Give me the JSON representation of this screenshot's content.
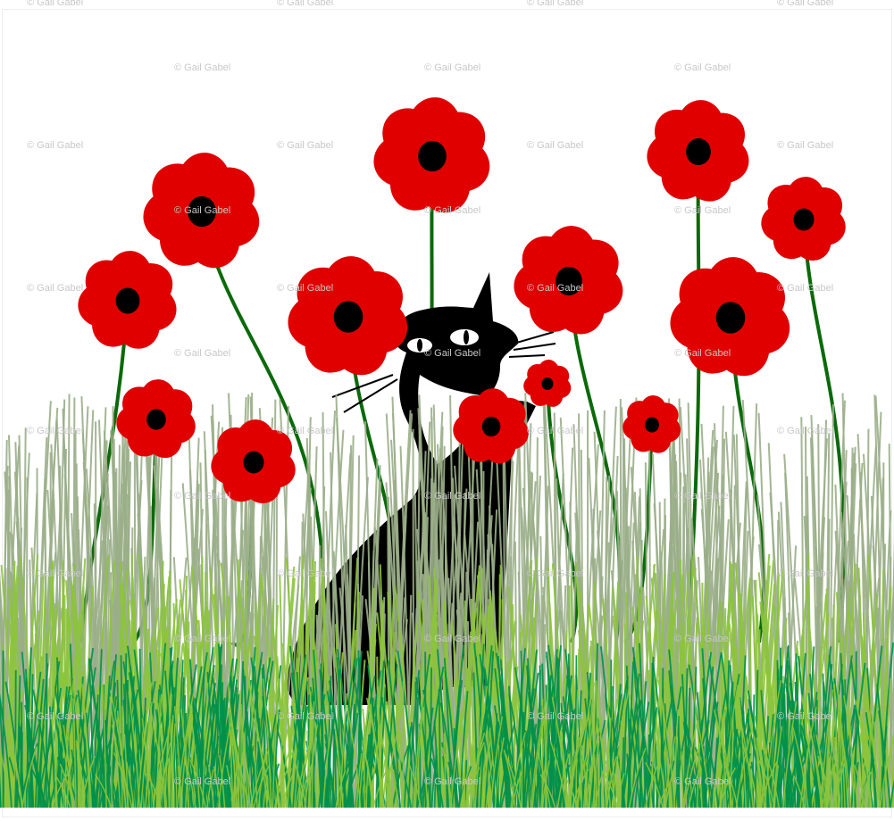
{
  "artwork": {
    "subject": "black cat among red poppies and grass",
    "watermark": "© Gail Gabel",
    "colors": {
      "poppy": "#e00000",
      "poppy_center": "#000000",
      "stem": "#0a6a0a",
      "grass_gray": "#9aae88",
      "grass_lime": "#8cc43c",
      "grass_dark": "#00904a",
      "cat": "#000000",
      "background": "#ffffff"
    }
  }
}
